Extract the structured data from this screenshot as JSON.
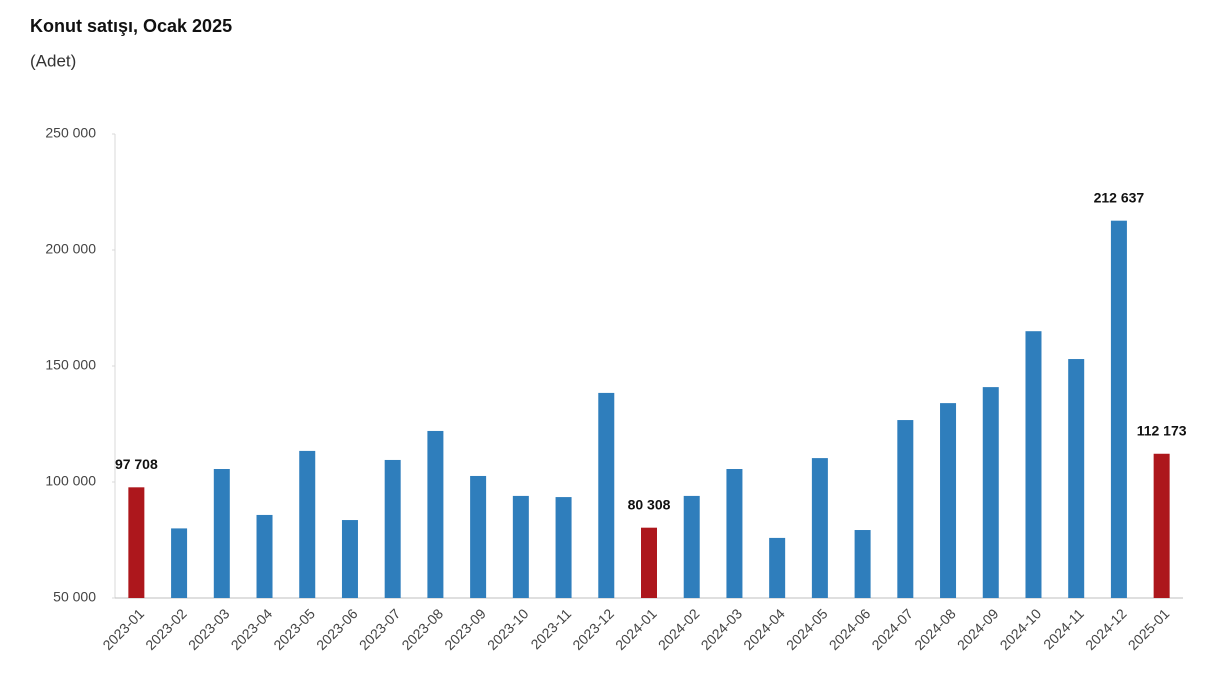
{
  "chart_data": {
    "type": "bar",
    "title": "Konut satışı, Ocak 2025",
    "subtitle": "(Adet)",
    "categories": [
      "2023-01",
      "2023-02",
      "2023-03",
      "2023-04",
      "2023-05",
      "2023-06",
      "2023-07",
      "2023-08",
      "2023-09",
      "2023-10",
      "2023-11",
      "2023-12",
      "2024-01",
      "2024-02",
      "2024-03",
      "2024-04",
      "2024-05",
      "2024-06",
      "2024-07",
      "2024-08",
      "2024-09",
      "2024-10",
      "2024-11",
      "2024-12",
      "2025-01"
    ],
    "values": [
      97708,
      80000,
      105600,
      85800,
      113400,
      83600,
      109500,
      122000,
      102600,
      94000,
      93500,
      138400,
      80308,
      94000,
      105600,
      75900,
      110300,
      79300,
      126700,
      134000,
      140900,
      165000,
      153000,
      212637,
      112173
    ],
    "value_labels": [
      "97 708",
      null,
      null,
      null,
      null,
      null,
      null,
      null,
      null,
      null,
      null,
      null,
      "80 308",
      null,
      null,
      null,
      null,
      null,
      null,
      null,
      null,
      null,
      null,
      "212 637",
      "112 173"
    ],
    "colors": [
      "#ad171c",
      "#2f7ebc",
      "#2f7ebc",
      "#2f7ebc",
      "#2f7ebc",
      "#2f7ebc",
      "#2f7ebc",
      "#2f7ebc",
      "#2f7ebc",
      "#2f7ebc",
      "#2f7ebc",
      "#2f7ebc",
      "#ad171c",
      "#2f7ebc",
      "#2f7ebc",
      "#2f7ebc",
      "#2f7ebc",
      "#2f7ebc",
      "#2f7ebc",
      "#2f7ebc",
      "#2f7ebc",
      "#2f7ebc",
      "#2f7ebc",
      "#2f7ebc",
      "#ad171c"
    ],
    "ylim": [
      50000,
      250000
    ],
    "yticks": [
      {
        "value": 50000,
        "label": "50 000"
      },
      {
        "value": 100000,
        "label": "100 000"
      },
      {
        "value": 150000,
        "label": "150 000"
      },
      {
        "value": 200000,
        "label": "200 000"
      },
      {
        "value": 250000,
        "label": "250 000"
      }
    ],
    "grid": false
  }
}
